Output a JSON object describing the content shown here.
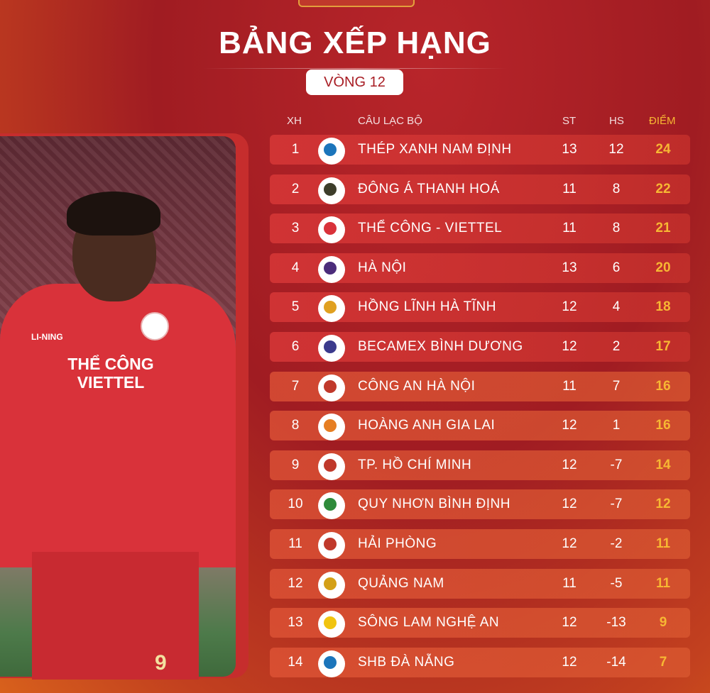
{
  "title": "BẢNG XẾP HẠNG",
  "round": "VÒNG 12",
  "headers": {
    "rank": "XH",
    "club": "CÂU LẠC BỘ",
    "played": "ST",
    "diff": "HS",
    "points": "ĐIỂM"
  },
  "photo": {
    "shirt_brand": "LI-NING",
    "shirt_text": "THỂ CÔNG VIETTEL",
    "number": "9"
  },
  "colors": {
    "points": "#f7b733",
    "accent_red": "#a81d24"
  },
  "standings": [
    {
      "rank": "1",
      "club": "THÉP XANH NAM ĐỊNH",
      "played": "13",
      "diff": "12",
      "points": "24",
      "logo": "nam-dinh-logo-icon",
      "logo_color": "#1b75bb"
    },
    {
      "rank": "2",
      "club": "ĐÔNG Á THANH HOÁ",
      "played": "11",
      "diff": "8",
      "points": "22",
      "logo": "thanh-hoa-logo-icon",
      "logo_color": "#3d3d2a"
    },
    {
      "rank": "3",
      "club": "THỂ CÔNG - VIETTEL",
      "played": "11",
      "diff": "8",
      "points": "21",
      "logo": "viettel-logo-icon",
      "logo_color": "#d9323a"
    },
    {
      "rank": "4",
      "club": "HÀ NỘI",
      "played": "13",
      "diff": "6",
      "points": "20",
      "logo": "ha-noi-logo-icon",
      "logo_color": "#4b2c7a"
    },
    {
      "rank": "5",
      "club": "HỒNG LĨNH HÀ TĨNH",
      "played": "12",
      "diff": "4",
      "points": "18",
      "logo": "ha-tinh-logo-icon",
      "logo_color": "#e0a020"
    },
    {
      "rank": "6",
      "club": "BECAMEX BÌNH DƯƠNG",
      "played": "12",
      "diff": "2",
      "points": "17",
      "logo": "binh-duong-logo-icon",
      "logo_color": "#3b3a8c"
    },
    {
      "rank": "7",
      "club": "CÔNG AN HÀ NỘI",
      "played": "11",
      "diff": "7",
      "points": "16",
      "logo": "cahn-logo-icon",
      "logo_color": "#c0392b"
    },
    {
      "rank": "8",
      "club": "HOÀNG ANH GIA LAI",
      "played": "12",
      "diff": "1",
      "points": "16",
      "logo": "hagl-logo-icon",
      "logo_color": "#e67e22"
    },
    {
      "rank": "9",
      "club": "TP. HỒ CHÍ MINH",
      "played": "12",
      "diff": "-7",
      "points": "14",
      "logo": "hcmc-logo-icon",
      "logo_color": "#c0392b"
    },
    {
      "rank": "10",
      "club": "QUY NHƠN BÌNH ĐỊNH",
      "played": "12",
      "diff": "-7",
      "points": "12",
      "logo": "binh-dinh-logo-icon",
      "logo_color": "#2e8b3a"
    },
    {
      "rank": "11",
      "club": "HẢI PHÒNG",
      "played": "12",
      "diff": "-2",
      "points": "11",
      "logo": "hai-phong-logo-icon",
      "logo_color": "#c0392b"
    },
    {
      "rank": "12",
      "club": "QUẢNG NAM",
      "played": "11",
      "diff": "-5",
      "points": "11",
      "logo": "quang-nam-logo-icon",
      "logo_color": "#d4a017"
    },
    {
      "rank": "13",
      "club": "SÔNG LAM NGHỆ AN",
      "played": "12",
      "diff": "-13",
      "points": "9",
      "logo": "slna-logo-icon",
      "logo_color": "#f1c40f"
    },
    {
      "rank": "14",
      "club": "SHB ĐÀ NẴNG",
      "played": "12",
      "diff": "-14",
      "points": "7",
      "logo": "da-nang-logo-icon",
      "logo_color": "#1b75bb"
    }
  ]
}
